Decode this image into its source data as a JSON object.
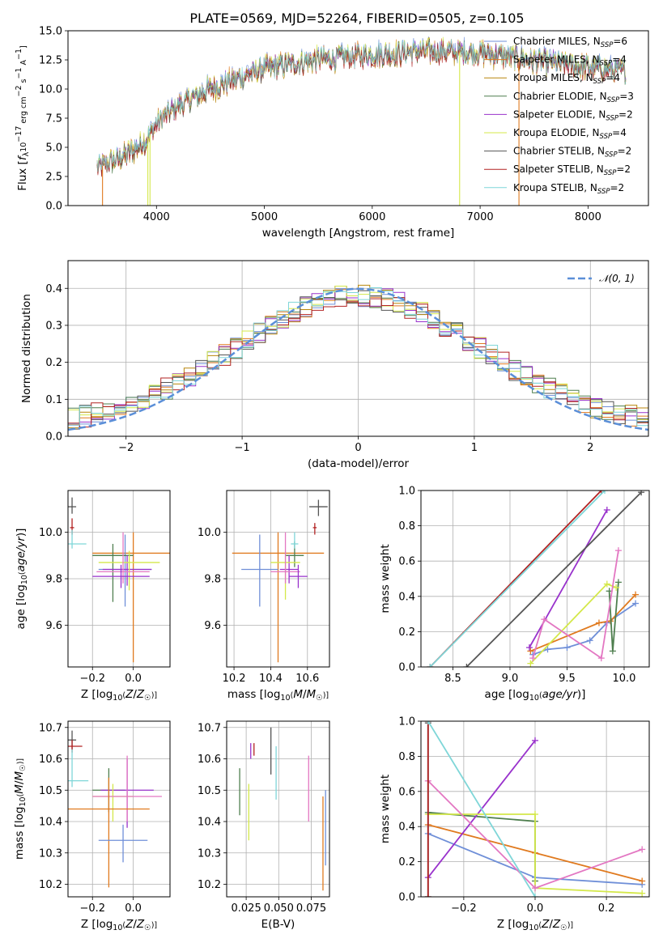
{
  "chart_data": [
    {
      "type": "line",
      "title": "PLATE=0569, MJD=52264, FIBERID=0505, z=0.105",
      "xlabel": "wavelength [Angstrom, rest frame]",
      "ylabel_parts": [
        "Flux [f",
        "λ",
        "10",
        "−17",
        " erg cm",
        "−2",
        " s",
        "−1",
        " A",
        "−1",
        "]"
      ],
      "xlim": [
        3180,
        8560
      ],
      "ylim": [
        0,
        15
      ],
      "xticks": [
        4000,
        5000,
        6000,
        7000,
        8000
      ],
      "yticks": [
        0.0,
        2.5,
        5.0,
        7.5,
        10.0,
        12.5,
        15.0
      ],
      "legend_location": "right",
      "series": [
        {
          "model": "Chabrier MILES",
          "n_ssp": "6",
          "color": "#6f8fd8",
          "y_offset": 0.3
        },
        {
          "model": "Salpeter MILES",
          "n_ssp": "4",
          "color": "#e07a1f",
          "y_offset": 0.2
        },
        {
          "model": "Kroupa MILES",
          "n_ssp": "4",
          "color": "#b8860b",
          "y_offset": -0.2
        },
        {
          "model": "Chabrier ELODIE",
          "n_ssp": "3",
          "color": "#4f7f4f",
          "y_offset": 0.0
        },
        {
          "model": "Salpeter ELODIE",
          "n_ssp": "2",
          "color": "#9932cc",
          "y_offset": 0.1
        },
        {
          "model": "Kroupa ELODIE",
          "n_ssp": "4",
          "color": "#d4e84a",
          "y_offset": 0.2
        },
        {
          "model": "Chabrier STELIB",
          "n_ssp": "2",
          "color": "#555555",
          "y_offset": 0.0
        },
        {
          "model": "Salpeter STELIB",
          "n_ssp": "2",
          "color": "#b22222",
          "y_offset": -0.1
        },
        {
          "model": "Kroupa STELIB",
          "n_ssp": "2",
          "color": "#7fd6d8",
          "y_offset": 0.1
        }
      ],
      "continuum": {
        "x": [
          3450,
          3700,
          3900,
          4000,
          4200,
          4500,
          5000,
          5500,
          6000,
          6500,
          7000,
          7500,
          8000,
          8350
        ],
        "y": [
          3.2,
          4.2,
          5.5,
          7.0,
          8.5,
          10.0,
          11.7,
          12.5,
          12.9,
          13.2,
          13.1,
          12.4,
          11.8,
          11.5
        ]
      }
    },
    {
      "type": "histogram",
      "xlabel": "(data-model)/error",
      "ylabel": "Normed distribution",
      "xlim": [
        -2.5,
        2.5
      ],
      "ylim": [
        0,
        0.475
      ],
      "xticks": [
        -2,
        -1,
        0,
        1,
        2
      ],
      "yticks": [
        0.0,
        0.1,
        0.2,
        0.3,
        0.4
      ],
      "grid": true,
      "legend_location": "top-right",
      "reference_curve": {
        "label": "𝒩(0, 1)",
        "color": "#5b8fd8",
        "style": "dashed"
      },
      "bin_edges_start": -2.5,
      "bin_width": 0.1
    },
    {
      "type": "scatter",
      "name": "age vs Z",
      "xlabel": "Z [log₁₀(Z/Z☉)]",
      "ylabel": "age  [log₁₀(age/yr)]",
      "xlim": [
        -0.32,
        0.18
      ],
      "ylim": [
        9.42,
        10.18
      ],
      "xticks": [
        -0.2,
        0.0
      ],
      "yticks": [
        9.6,
        9.8,
        10.0
      ],
      "grid": true,
      "points": [
        {
          "x": 0.0,
          "xerr": 0.2,
          "y": 9.91,
          "yerr_lo": 0.47,
          "yerr_hi": 0.09,
          "color": "#e07a1f"
        },
        {
          "x": -0.04,
          "xerr": 0.13,
          "y": 9.84,
          "yerr_lo": 0.16,
          "yerr_hi": 0.15,
          "color": "#6f8fd8"
        },
        {
          "x": -0.1,
          "xerr": 0.1,
          "y": 9.9,
          "yerr_lo": 0.2,
          "yerr_hi": 0.05,
          "color": "#4f7f4f"
        },
        {
          "x": -0.03,
          "xerr": 0.12,
          "y": 9.84,
          "yerr_lo": 0.07,
          "yerr_hi": 0.06,
          "color": "#9932cc"
        },
        {
          "x": -0.02,
          "xerr": 0.15,
          "y": 9.87,
          "yerr_lo": 0.12,
          "yerr_hi": 0.05,
          "color": "#d4e84a"
        },
        {
          "x": -0.05,
          "xerr": 0.13,
          "y": 9.83,
          "yerr_lo": 0.05,
          "yerr_hi": 0.17,
          "color": "#e377c2"
        },
        {
          "x": -0.06,
          "xerr": 0.14,
          "y": 9.81,
          "yerr_lo": 0.05,
          "yerr_hi": 0.05,
          "color": "#9932cc"
        },
        {
          "x": -0.3,
          "xerr": 0.02,
          "y": 10.11,
          "yerr_lo": 0.03,
          "yerr_hi": 0.04,
          "color": "#555555"
        },
        {
          "x": -0.3,
          "xerr": 0.01,
          "y": 10.02,
          "yerr_lo": 0.03,
          "yerr_hi": 0.04,
          "color": "#b22222"
        },
        {
          "x": -0.3,
          "xerr": 0.07,
          "y": 9.95,
          "yerr_lo": 0.02,
          "yerr_hi": 0.06,
          "color": "#7fd6d8"
        }
      ]
    },
    {
      "type": "scatter",
      "name": "age vs mass",
      "xlabel": "mass [log₁₀(M/M☉)]",
      "xlim": [
        10.16,
        10.72
      ],
      "ylim": [
        9.42,
        10.18
      ],
      "xticks": [
        10.2,
        10.4,
        10.6
      ],
      "yticks": [
        9.6,
        9.8,
        10.0
      ],
      "grid": true,
      "points": [
        {
          "x": 10.44,
          "xerr": 0.25,
          "y": 9.91,
          "yerr_lo": 0.47,
          "yerr_hi": 0.09,
          "color": "#e07a1f"
        },
        {
          "x": 10.34,
          "xerr": 0.1,
          "y": 9.84,
          "yerr_lo": 0.16,
          "yerr_hi": 0.15,
          "color": "#6f8fd8"
        },
        {
          "x": 10.53,
          "xerr": 0.05,
          "y": 9.9,
          "yerr_lo": 0.05,
          "yerr_hi": 0.06,
          "color": "#4f7f4f"
        },
        {
          "x": 10.5,
          "xerr": 0.05,
          "y": 9.84,
          "yerr_lo": 0.06,
          "yerr_hi": 0.06,
          "color": "#9932cc"
        },
        {
          "x": 10.48,
          "xerr": 0.08,
          "y": 9.87,
          "yerr_lo": 0.16,
          "yerr_hi": 0.05,
          "color": "#d4e84a"
        },
        {
          "x": 10.48,
          "xerr": 0.08,
          "y": 9.83,
          "yerr_lo": 0.05,
          "yerr_hi": 0.17,
          "color": "#e377c2"
        },
        {
          "x": 10.55,
          "xerr": 0.05,
          "y": 9.81,
          "yerr_lo": 0.05,
          "yerr_hi": 0.05,
          "color": "#9932cc"
        },
        {
          "x": 10.66,
          "xerr": 0.05,
          "y": 10.11,
          "yerr_lo": 0.04,
          "yerr_hi": 0.03,
          "color": "#555555"
        },
        {
          "x": 10.64,
          "xerr": 0.01,
          "y": 10.02,
          "yerr_lo": 0.03,
          "yerr_hi": 0.02,
          "color": "#b22222"
        },
        {
          "x": 10.53,
          "xerr": 0.02,
          "y": 9.95,
          "yerr_lo": 0.02,
          "yerr_hi": 0.05,
          "color": "#7fd6d8"
        }
      ]
    },
    {
      "type": "line",
      "name": "mass weight vs age",
      "xlabel": "age  [log₁₀(age/yr)]",
      "ylabel": "mass weight",
      "xlim": [
        8.22,
        10.22
      ],
      "ylim": [
        0,
        1
      ],
      "xticks": [
        8.5,
        9.0,
        9.5,
        10.0
      ],
      "yticks": [
        0.0,
        0.2,
        0.4,
        0.6,
        0.8,
        1.0
      ],
      "grid": true,
      "series": [
        {
          "color": "#6f8fd8",
          "x": [
            9.2,
            9.33,
            9.5,
            9.7,
            9.85,
            10.1
          ],
          "y": [
            0.07,
            0.1,
            0.11,
            0.15,
            0.25,
            0.36
          ]
        },
        {
          "color": "#e07a1f",
          "x": [
            9.18,
            9.78,
            9.88,
            10.1
          ],
          "y": [
            0.09,
            0.25,
            0.26,
            0.41
          ]
        },
        {
          "color": "#4f7f4f",
          "x": [
            9.87,
            9.9,
            9.95
          ],
          "y": [
            0.43,
            0.09,
            0.48
          ]
        },
        {
          "color": "#9932cc",
          "x": [
            9.17,
            9.85
          ],
          "y": [
            0.11,
            0.89
          ]
        },
        {
          "color": "#d4e84a",
          "x": [
            9.18,
            9.85,
            9.93
          ],
          "y": [
            0.02,
            0.47,
            0.45
          ]
        },
        {
          "color": "#e377c2",
          "x": [
            9.2,
            9.3,
            9.8,
            9.95
          ],
          "y": [
            0.05,
            0.27,
            0.05,
            0.66
          ]
        },
        {
          "color": "#555555",
          "x": [
            8.62,
            10.15
          ],
          "y": [
            0.0,
            0.99
          ]
        },
        {
          "color": "#b22222",
          "x": [
            8.3,
            9.8
          ],
          "y": [
            0.0,
            1.0
          ]
        },
        {
          "color": "#7fd6d8",
          "x": [
            8.3,
            9.83
          ],
          "y": [
            0.0,
            1.0
          ]
        }
      ]
    },
    {
      "type": "scatter",
      "name": "mass vs Z",
      "xlabel": "Z [log₁₀(Z/Z☉)]",
      "ylabel": "mass [log₁₀(M/M☉)]",
      "xlim": [
        -0.32,
        0.18
      ],
      "ylim": [
        10.16,
        10.72
      ],
      "xticks": [
        -0.2,
        0.0
      ],
      "yticks": [
        10.2,
        10.3,
        10.4,
        10.5,
        10.6,
        10.7
      ],
      "grid": true,
      "points": [
        {
          "x": -0.12,
          "xerr": 0.08,
          "y": 10.5,
          "yerr_lo": 0.07,
          "yerr_hi": 0.07,
          "color": "#4f7f4f"
        },
        {
          "x": -0.03,
          "xerr": 0.13,
          "y": 10.5,
          "yerr_lo": 0.12,
          "yerr_hi": 0.1,
          "color": "#9932cc"
        },
        {
          "x": -0.1,
          "xerr": 0.1,
          "y": 10.48,
          "yerr_lo": 0.08,
          "yerr_hi": 0.04,
          "color": "#d4e84a"
        },
        {
          "x": -0.03,
          "xerr": 0.17,
          "y": 10.48,
          "yerr_lo": 0.08,
          "yerr_hi": 0.13,
          "color": "#e377c2"
        },
        {
          "x": -0.12,
          "xerr": 0.2,
          "y": 10.44,
          "yerr_lo": 0.25,
          "yerr_hi": 0.1,
          "color": "#e07a1f"
        },
        {
          "x": -0.05,
          "xerr": 0.12,
          "y": 10.34,
          "yerr_lo": 0.07,
          "yerr_hi": 0.05,
          "color": "#6f8fd8"
        },
        {
          "x": -0.3,
          "xerr": 0.02,
          "y": 10.66,
          "yerr_lo": 0.03,
          "yerr_hi": 0.03,
          "color": "#555555"
        },
        {
          "x": -0.3,
          "xerr": 0.05,
          "y": 10.64,
          "yerr_lo": 0.02,
          "yerr_hi": 0.02,
          "color": "#b22222"
        },
        {
          "x": -0.3,
          "xerr": 0.08,
          "y": 10.53,
          "yerr_lo": 0.02,
          "yerr_hi": 0.1,
          "color": "#7fd6d8"
        }
      ]
    },
    {
      "type": "scatter",
      "name": "mass vs E(B-V)",
      "xlabel": "E(B-V)",
      "xlim": [
        0.01,
        0.089
      ],
      "ylim": [
        10.16,
        10.72
      ],
      "xticks": [
        0.025,
        0.05,
        0.075
      ],
      "yticks": [
        10.2,
        10.3,
        10.4,
        10.5,
        10.6,
        10.7
      ],
      "grid": true,
      "points": [
        {
          "x": 0.02,
          "xerr": 0.0,
          "y": 10.5,
          "yerr_lo": 0.08,
          "yerr_hi": 0.07,
          "color": "#4f7f4f"
        },
        {
          "x": 0.027,
          "xerr": 0.0,
          "y": 10.44,
          "yerr_lo": 0.1,
          "yerr_hi": 0.08,
          "color": "#d4e84a"
        },
        {
          "x": 0.0285,
          "xerr": 0.0,
          "y": 10.62,
          "yerr_lo": 0.02,
          "yerr_hi": 0.03,
          "color": "#9932cc"
        },
        {
          "x": 0.031,
          "xerr": 0.0,
          "y": 10.63,
          "yerr_lo": 0.02,
          "yerr_hi": 0.02,
          "color": "#b22222"
        },
        {
          "x": 0.044,
          "xerr": 0.0,
          "y": 10.62,
          "yerr_lo": 0.07,
          "yerr_hi": 0.08,
          "color": "#555555"
        },
        {
          "x": 0.048,
          "xerr": 0.0,
          "y": 10.57,
          "yerr_lo": 0.1,
          "yerr_hi": 0.07,
          "color": "#7fd6d8"
        },
        {
          "x": 0.073,
          "xerr": 0.0,
          "y": 10.5,
          "yerr_lo": 0.1,
          "yerr_hi": 0.11,
          "color": "#e377c2"
        },
        {
          "x": 0.084,
          "xerr": 0.0,
          "y": 10.33,
          "yerr_lo": 0.15,
          "yerr_hi": 0.15,
          "color": "#e07a1f"
        },
        {
          "x": 0.086,
          "xerr": 0.0,
          "y": 10.38,
          "yerr_lo": 0.12,
          "yerr_hi": 0.12,
          "color": "#6f8fd8"
        }
      ]
    },
    {
      "type": "line",
      "name": "mass weight vs Z",
      "xlabel": "Z [log₁₀(Z/Z☉)]",
      "ylabel": "mass weight",
      "xlim": [
        -0.32,
        0.32
      ],
      "ylim": [
        0,
        1
      ],
      "xticks": [
        -0.2,
        0.0,
        0.2
      ],
      "yticks": [
        0.0,
        0.2,
        0.4,
        0.6,
        0.8,
        1.0
      ],
      "grid": true,
      "series": [
        {
          "color": "#6f8fd8",
          "x": [
            -0.3,
            0.0,
            0.3
          ],
          "y": [
            0.36,
            0.11,
            0.07
          ]
        },
        {
          "color": "#e07a1f",
          "x": [
            -0.3,
            0.0,
            0.3
          ],
          "y": [
            0.41,
            0.25,
            0.09
          ]
        },
        {
          "color": "#4f7f4f",
          "x": [
            -0.3,
            0.0,
            0.0
          ],
          "y": [
            0.48,
            0.43,
            0.09
          ]
        },
        {
          "color": "#9932cc",
          "x": [
            -0.3,
            0.0
          ],
          "y": [
            0.11,
            0.89
          ]
        },
        {
          "color": "#d4e84a",
          "x": [
            -0.3,
            0.0,
            0.0,
            0.3
          ],
          "y": [
            0.47,
            0.47,
            0.05,
            0.02
          ]
        },
        {
          "color": "#e377c2",
          "x": [
            -0.3,
            0.0,
            0.3
          ],
          "y": [
            0.66,
            0.05,
            0.27
          ]
        },
        {
          "color": "#555555",
          "x": [
            -0.3,
            -0.3
          ],
          "y": [
            0.0,
            0.99
          ]
        },
        {
          "color": "#b22222",
          "x": [
            -0.3,
            -0.3
          ],
          "y": [
            0.0,
            1.0
          ]
        },
        {
          "color": "#7fd6d8",
          "x": [
            -0.3,
            0.0
          ],
          "y": [
            1.0,
            0.0
          ]
        }
      ]
    }
  ]
}
